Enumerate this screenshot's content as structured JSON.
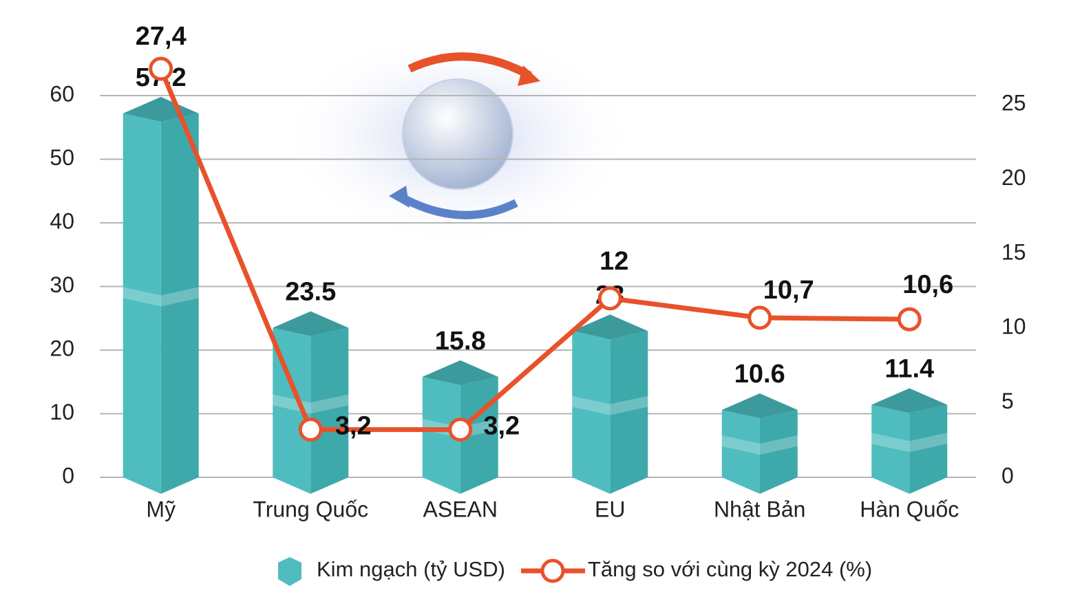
{
  "chart_data": {
    "type": "bar-line",
    "categories": [
      "Mỹ",
      "Trung Quốc",
      "ASEAN",
      "EU",
      "Nhật Bản",
      "Hàn Quốc"
    ],
    "series": [
      {
        "name": "Kim ngạch (tỷ USD)",
        "type": "bar",
        "color": "#4fbdbf",
        "values": [
          57.2,
          23.5,
          15.8,
          23,
          10.6,
          11.4
        ]
      },
      {
        "name": "Tăng so với cùng kỳ 2024 (%)",
        "type": "line",
        "axis": "y2",
        "color": "#e8522b",
        "values": [
          27.4,
          3.2,
          3.2,
          12,
          10.7,
          10.6
        ],
        "value_labels": [
          "27,4",
          "3,2",
          "3,2",
          "12",
          "10,7",
          "10,6"
        ]
      }
    ],
    "ylim": [
      0,
      60
    ],
    "yticks": [
      0,
      10,
      20,
      30,
      40,
      50,
      60
    ],
    "y2lim": [
      0,
      25.6
    ],
    "y2ticks": [
      0,
      5,
      10,
      15,
      20,
      25
    ],
    "grid": true,
    "legend": "bottom"
  }
}
